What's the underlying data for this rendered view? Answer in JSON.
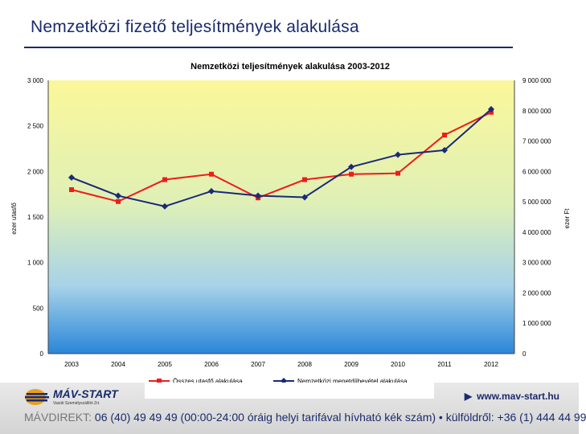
{
  "slide": {
    "title": "Nemzetközi fizető teljesítmények alakulása"
  },
  "chart_data": {
    "type": "line",
    "title": "Nemzetközi teljesítmények alakulása 2003-2012",
    "categories": [
      "2003",
      "2004",
      "2005",
      "2006",
      "2007",
      "2008",
      "2009",
      "2010",
      "2011",
      "2012"
    ],
    "y_left": {
      "label": "ezer utasfő",
      "ylim": [
        0,
        3000
      ],
      "ticks": [
        "0",
        "500",
        "1 000",
        "1 500",
        "2 000",
        "2 500",
        "3 000"
      ]
    },
    "y_right": {
      "label": "ezer Ft",
      "ylim": [
        0,
        9000000
      ],
      "ticks": [
        "0",
        "1 000 000",
        "2 000 000",
        "3 000 000",
        "4 000 000",
        "5 000 000",
        "6 000 000",
        "7 000 000",
        "8 000 000",
        "9 000 000"
      ]
    },
    "series": [
      {
        "name": "Összes utasfő alakulása",
        "axis": "left",
        "color": "#ee1c1c",
        "marker": "square",
        "values": [
          1800,
          1670,
          1910,
          1970,
          1710,
          1910,
          1970,
          1980,
          2400,
          2650
        ]
      },
      {
        "name": "Nemzetközi menetdíjbevétel alakulása",
        "axis": "right",
        "color": "#1a2a7a",
        "marker": "diamond",
        "values": [
          5800000,
          5200000,
          4850000,
          5350000,
          5200000,
          5150000,
          6150000,
          6550000,
          6700000,
          8050000
        ]
      }
    ],
    "grid": false,
    "legend": "bottom",
    "background": "gradient yellow-to-blue"
  },
  "footer": {
    "logo_name": "MÁV-START",
    "logo_sub": "Vasúti Személyszállító Zrt.",
    "website": "www.mav-start.hu",
    "hotline_label": "MÁVDIREKT:",
    "hotline_text": "06 (40) 49 49 49 (00:00-24:00 óráig helyi tarifával hívható kék szám) • külföldről: +36 (1) 444 44 99"
  }
}
